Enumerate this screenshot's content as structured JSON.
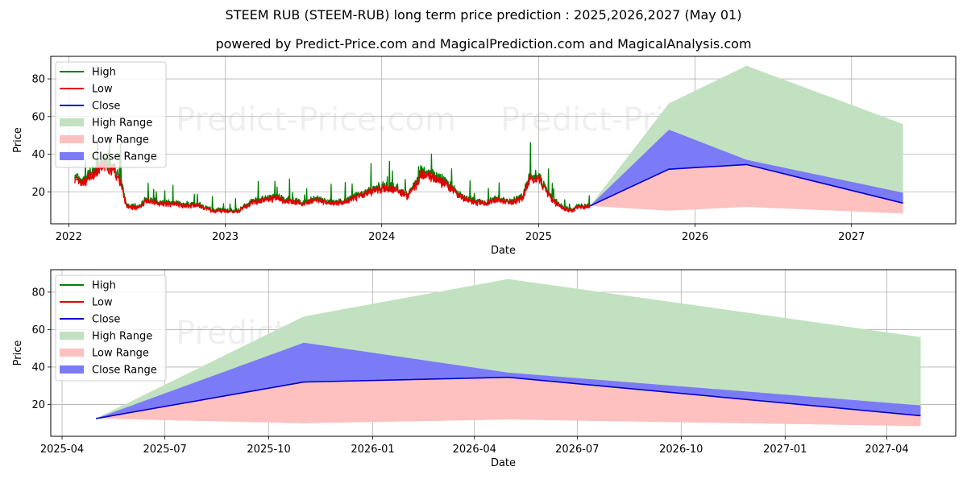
{
  "header": {
    "title": "STEEM RUB (STEEM-RUB) long term price prediction : 2025,2026,2027 (May 01)",
    "subtitle": "powered by Predict-Price.com and MagicalPrediction.com and MagicalAnalysis.com"
  },
  "watermark": "Predict-Price.com",
  "colors": {
    "high": "#008000",
    "low": "#e00000",
    "close": "#0000cc",
    "high_range": "#c1e1c1",
    "low_range": "#ffc0c0",
    "close_range": "#7b7bf7"
  },
  "chart_data": [
    {
      "type": "area",
      "xlabel": "Date",
      "ylabel": "Price",
      "xlim": [
        "2021-11-20",
        "2027-09-01"
      ],
      "ylim": [
        3,
        92
      ],
      "x_ticks": [
        "2022",
        "2023",
        "2024",
        "2025",
        "2026",
        "2027"
      ],
      "y_ticks": [
        20,
        40,
        60,
        80
      ],
      "grid": true,
      "legend_position": "top-left",
      "legend": [
        "High",
        "Low",
        "Close",
        "High Range",
        "Low Range",
        "Close Range"
      ],
      "history_anchors": {
        "x": [
          "2022-01-15",
          "2022-02-01",
          "2022-02-15",
          "2022-03-01",
          "2022-03-15",
          "2022-04-01",
          "2022-04-15",
          "2022-05-01",
          "2022-05-15",
          "2022-06-01",
          "2022-06-15",
          "2022-07-01",
          "2022-08-01",
          "2022-09-01",
          "2022-10-01",
          "2022-11-01",
          "2022-12-01",
          "2023-01-01",
          "2023-02-01",
          "2023-03-01",
          "2023-04-01",
          "2023-05-01",
          "2023-06-01",
          "2023-07-01",
          "2023-08-01",
          "2023-09-01",
          "2023-10-01",
          "2023-11-01",
          "2023-12-01",
          "2024-01-01",
          "2024-02-01",
          "2024-03-01",
          "2024-03-20",
          "2024-04-01",
          "2024-05-01",
          "2024-06-01",
          "2024-07-01",
          "2024-08-01",
          "2024-09-01",
          "2024-10-01",
          "2024-11-01",
          "2024-11-25",
          "2024-12-10",
          "2025-01-01",
          "2025-01-15",
          "2025-02-01",
          "2025-03-01",
          "2025-03-20",
          "2025-04-01",
          "2025-05-01"
        ],
        "close": [
          27,
          24,
          28,
          30,
          35,
          33,
          32,
          26,
          13,
          12,
          12,
          16,
          14,
          14,
          13,
          13,
          10,
          10,
          10,
          14,
          16,
          17,
          15,
          14,
          16,
          14,
          15,
          17,
          20,
          22,
          22,
          18,
          24,
          30,
          28,
          24,
          18,
          15,
          14,
          16,
          15,
          17,
          27,
          28,
          22,
          16,
          11,
          10,
          12,
          12.5
        ]
      },
      "forecast": {
        "x": [
          "2025-05-01",
          "2025-11-01",
          "2026-05-01",
          "2027-05-01"
        ],
        "high": [
          12.5,
          67,
          87,
          56
        ],
        "low": [
          12.5,
          10,
          12,
          8.5
        ],
        "close": [
          12.5,
          32,
          34.5,
          14
        ],
        "close_upper": [
          12.5,
          53,
          37,
          19.5
        ],
        "close_lower": [
          12.5,
          32,
          34.5,
          14
        ]
      }
    },
    {
      "type": "area",
      "xlabel": "Date",
      "ylabel": "Price",
      "xlim": [
        "2025-03-22",
        "2027-06-01"
      ],
      "ylim": [
        3,
        92
      ],
      "x_ticks": [
        "2025-04",
        "2025-07",
        "2025-10",
        "2026-01",
        "2026-04",
        "2026-07",
        "2026-10",
        "2027-01",
        "2027-04"
      ],
      "y_ticks": [
        20,
        40,
        60,
        80
      ],
      "grid": true,
      "legend_position": "top-left",
      "legend": [
        "High",
        "Low",
        "Close",
        "High Range",
        "Low Range",
        "Close Range"
      ],
      "forecast": {
        "x": [
          "2025-05-01",
          "2025-11-01",
          "2026-05-01",
          "2027-05-01"
        ],
        "high": [
          12.5,
          67,
          87,
          56
        ],
        "low": [
          12.5,
          10,
          12,
          8.5
        ],
        "close": [
          12.5,
          32,
          34.5,
          14
        ],
        "close_upper": [
          12.5,
          53,
          37,
          19.5
        ],
        "close_lower": [
          12.5,
          32,
          34.5,
          14
        ]
      }
    }
  ]
}
